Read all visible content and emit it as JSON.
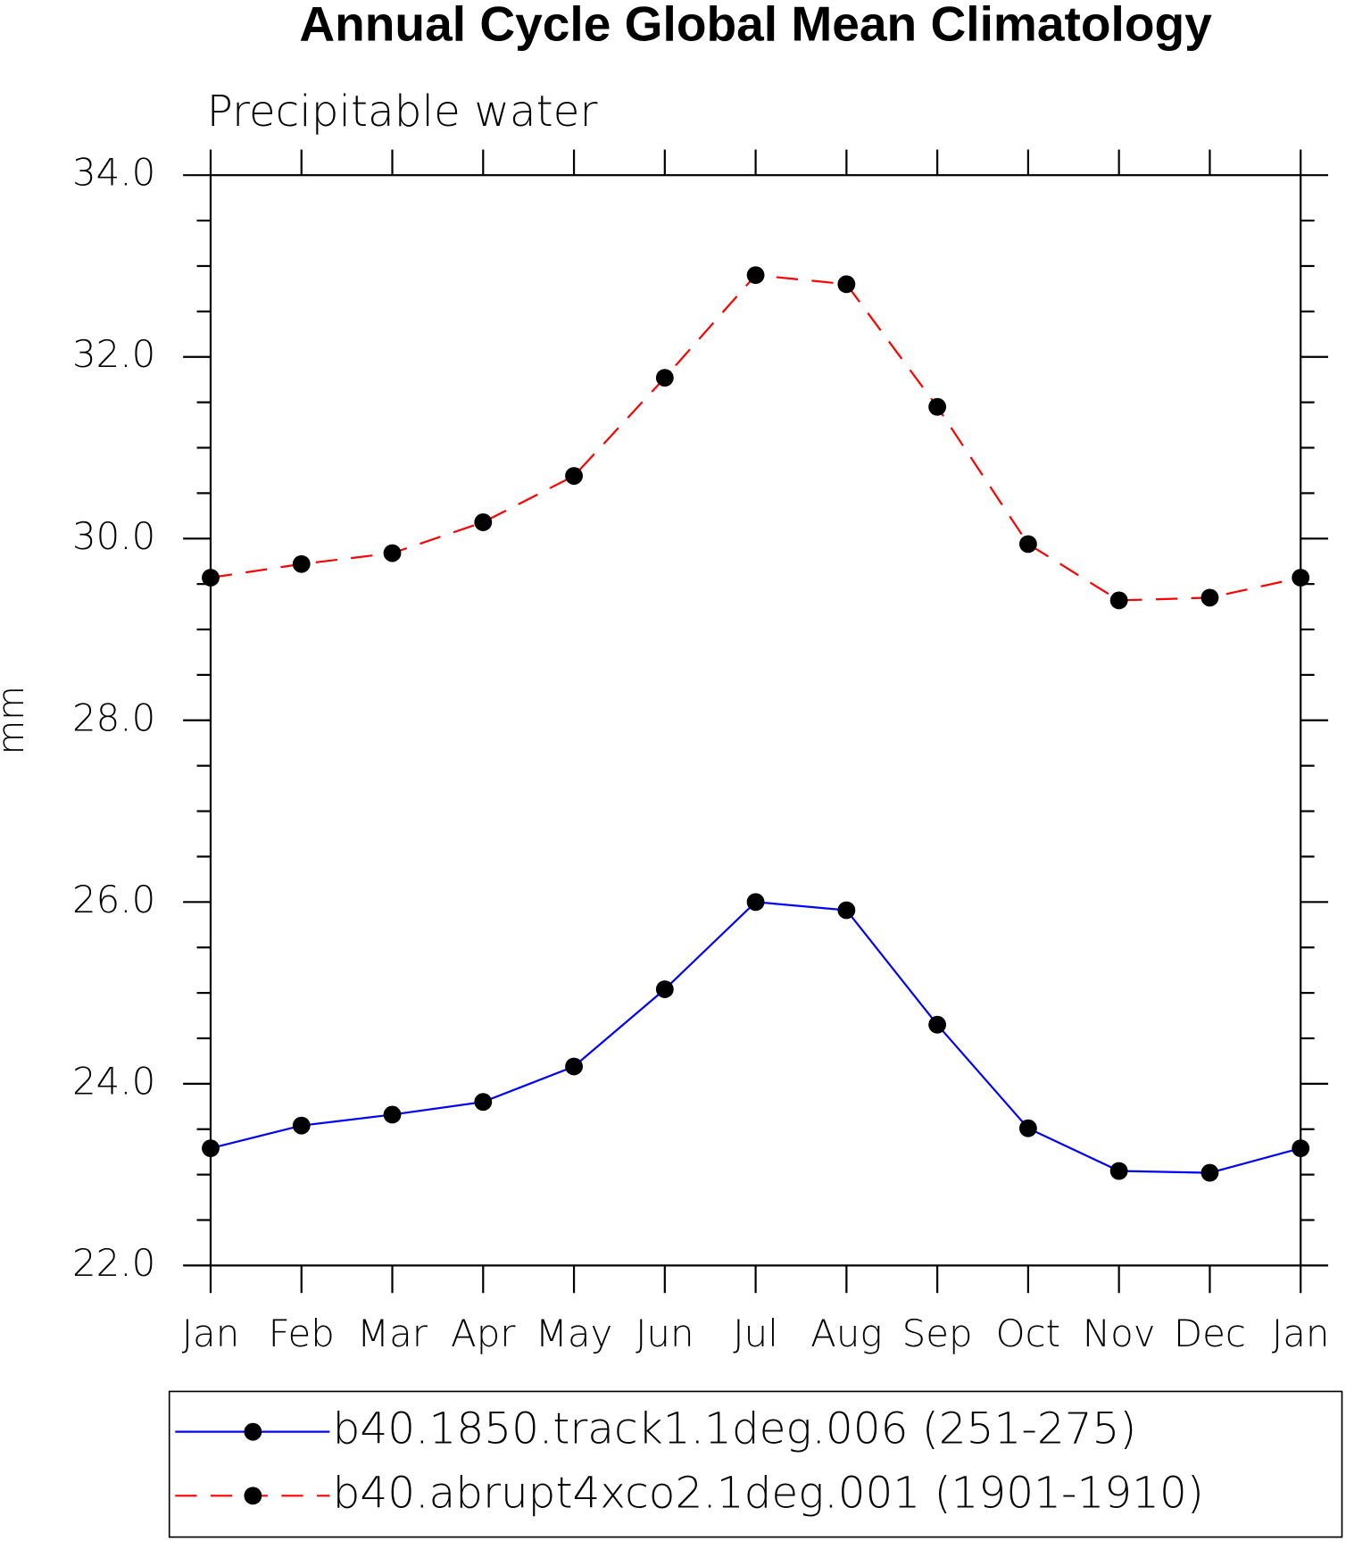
{
  "chart_data": {
    "type": "line",
    "title": "Annual Cycle Global Mean Climatology",
    "subtitle": "Precipitable water",
    "ylabel": "mm",
    "categories": [
      "Jan",
      "Feb",
      "Mar",
      "Apr",
      "May",
      "Jun",
      "Jul",
      "Aug",
      "Sep",
      "Oct",
      "Nov",
      "Dec",
      "Jan"
    ],
    "series": [
      {
        "name": "b40.1850.track1.1deg.006 (251-275)",
        "color": "#0000ff",
        "dash": "solid",
        "values": [
          23.29,
          23.54,
          23.66,
          23.8,
          24.19,
          25.04,
          26.0,
          25.91,
          24.65,
          23.51,
          23.04,
          23.02,
          23.29
        ]
      },
      {
        "name": "b40.abrupt4xco2.1deg.001 (1901-1910)",
        "color": "#ff0000",
        "dash": "dashed",
        "values": [
          29.57,
          29.72,
          29.84,
          30.18,
          30.69,
          31.77,
          32.9,
          32.8,
          31.45,
          29.94,
          29.32,
          29.35,
          29.57
        ]
      }
    ],
    "ylim": [
      22,
      34
    ],
    "yticks": [
      {
        "value": 22,
        "label": "22.0"
      },
      {
        "value": 24,
        "label": "24.0"
      },
      {
        "value": 26,
        "label": "26.0"
      },
      {
        "value": 28,
        "label": "28.0"
      },
      {
        "value": 30,
        "label": "30.0"
      },
      {
        "value": 32,
        "label": "32.0"
      },
      {
        "value": 34,
        "label": "34.0"
      }
    ],
    "y_minor_ticks": [
      22.5,
      23,
      23.5,
      24.5,
      25,
      25.5,
      26.5,
      27,
      27.5,
      28.5,
      29,
      29.5,
      30.5,
      31,
      31.5,
      32.5,
      33,
      33.5
    ],
    "legend": "bottom"
  }
}
